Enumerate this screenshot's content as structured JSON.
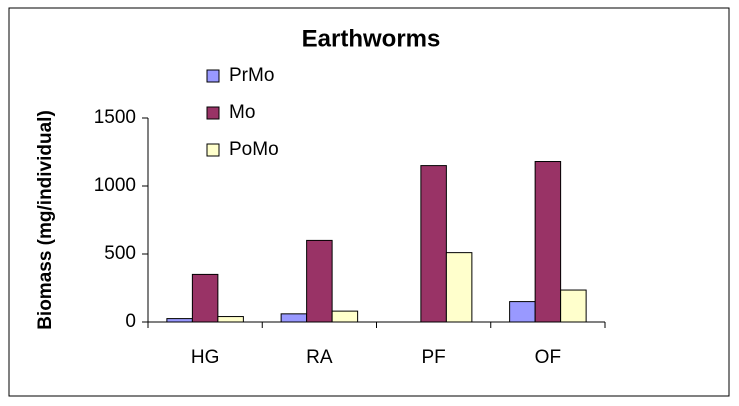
{
  "chart_data": {
    "type": "bar",
    "title": "Earthworms",
    "y_label": "Biomass (mg/individual)",
    "categories": [
      "HG",
      "RA",
      "PF",
      "OF"
    ],
    "series": [
      {
        "name": "PrMo",
        "color": "#9999ff",
        "values": [
          25,
          60,
          0,
          150
        ]
      },
      {
        "name": "Mo",
        "color": "#993366",
        "values": [
          350,
          600,
          1150,
          1180
        ]
      },
      {
        "name": "PoMo",
        "color": "#ffffcc",
        "values": [
          40,
          80,
          510,
          235
        ]
      }
    ],
    "ylim": [
      0,
      1500
    ],
    "yticks": [
      0,
      500,
      1000,
      1500
    ],
    "grid": false,
    "legend": "top-left"
  }
}
